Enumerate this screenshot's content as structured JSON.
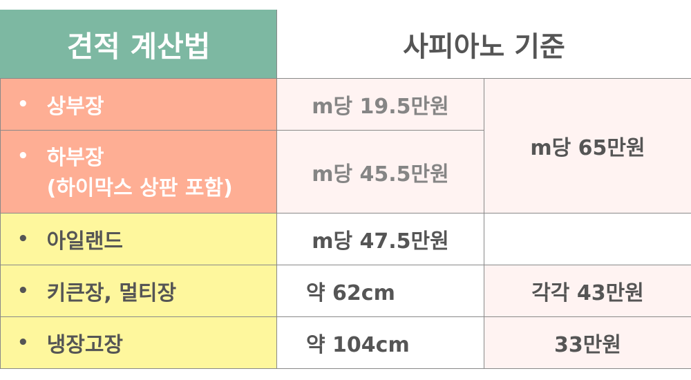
{
  "header": {
    "left": "견적 계산법",
    "right": "사피아노 기준"
  },
  "rows": [
    {
      "label": "상부장",
      "value": "m당 19.5만원"
    },
    {
      "label": "하부장",
      "sublabel": "(하이막스 상판 포함)",
      "value": "m당 45.5만원"
    },
    {
      "label": "아일랜드",
      "value": "m당 47.5만원"
    },
    {
      "label": "키큰장, 멀티장",
      "value": "약 62cm",
      "price": "각각 43만원"
    },
    {
      "label": "냉장고장",
      "value": "약 104cm",
      "price": "33만원"
    }
  ],
  "merged_price": "m당 65만원",
  "bullet": "•",
  "colors": {
    "header": "#7db8a2",
    "lower_upper_cabinets": "#feae94",
    "others": "#fef79d",
    "price_cell": "#fff3f2"
  }
}
